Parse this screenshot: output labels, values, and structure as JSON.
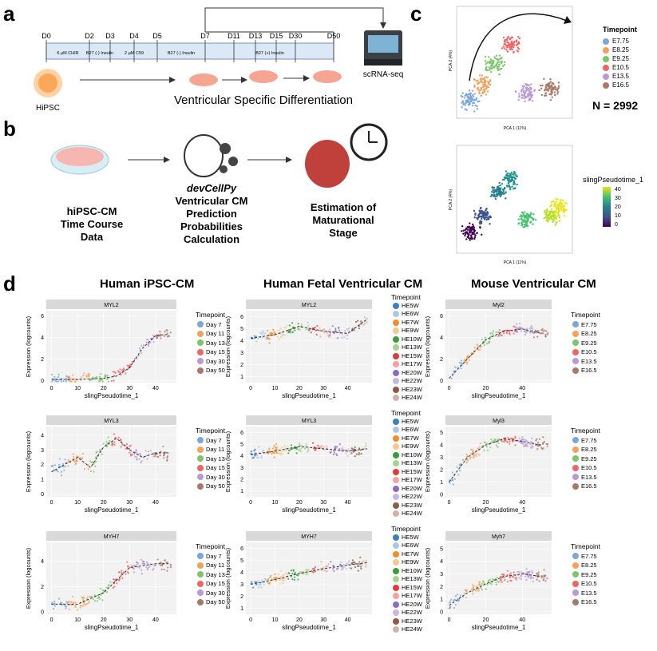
{
  "panel_a": {
    "label": "a",
    "days": [
      "D0",
      "D2",
      "D3",
      "D4",
      "D5",
      "D7",
      "D11",
      "D13",
      "D15",
      "D30",
      "D50"
    ],
    "media": [
      "6 µM CHIR",
      "B27 (-) Insulin",
      "2 µM C59",
      "B27 (-) Insulin",
      "B27 (+) Insulin"
    ],
    "hipsc": "HiPSC",
    "differentiation": "Ventricular Specific Differentiation",
    "scrna": "scRNA-seq",
    "colors": {
      "timeline_bg": "#dce8f5",
      "cell": "#f6a593",
      "hipsc": "#f9a85a"
    }
  },
  "panel_b": {
    "label": "b",
    "step1": [
      "hiPSC-CM",
      "Time Course Data"
    ],
    "tool": "devCellPy",
    "step2": [
      "Ventricular CM",
      "Prediction",
      "Probabilities",
      "Calculation"
    ],
    "step3": [
      "Estimation of",
      "Maturational",
      "Stage"
    ]
  },
  "panel_c": {
    "label": "c",
    "pca_top": {
      "xlabel": "PCA 1 (11%)",
      "ylabel": "PCA 2 (4%)",
      "legend_title": "Timepoint",
      "legend": [
        "E7.75",
        "E8.25",
        "E9.25",
        "E10.5",
        "E13.5",
        "E16.5"
      ],
      "colors": [
        "#7ba6dc",
        "#f5a15c",
        "#7cc56b",
        "#ef6464",
        "#b99ad6",
        "#a97868"
      ]
    },
    "n_label": "N = 2992",
    "pca_bottom": {
      "xlabel": "PCA 1 (11%)",
      "ylabel": "PCA 2 (4%)",
      "legend_title": "slingPseudotime_1",
      "ticks": [
        "40",
        "30",
        "20",
        "10",
        "0"
      ]
    }
  },
  "panel_d": {
    "label": "d",
    "columns": [
      "Human iPSC-CM",
      "Human Fetal Ventricular CM",
      "Mouse Ventricular CM"
    ],
    "xlabel": "slingPseudotime_1",
    "ylabel": "Expression (logcounts)",
    "legend_title": "Timepoint",
    "legends": [
      {
        "items": [
          "Day 7",
          "Day 11",
          "Day 13",
          "Day 15",
          "Day 30",
          "Day 50"
        ],
        "colors": [
          "#7ba6dc",
          "#f5a15c",
          "#7cc56b",
          "#ef6464",
          "#b99ad6",
          "#a97868"
        ]
      },
      {
        "items": [
          "HE5W",
          "HE6W",
          "HE7W",
          "HE9W",
          "HE10W",
          "HE13W",
          "HE15W",
          "HE17W",
          "HE20W",
          "HE22W",
          "HE23W",
          "HE24W"
        ],
        "colors": [
          "#3d7fc0",
          "#a9c8e8",
          "#f18d2e",
          "#f5c98d",
          "#3a9c3a",
          "#a4d58b",
          "#e03b3b",
          "#f4a1a1",
          "#8d6cc0",
          "#c9b7e0",
          "#8a5a4a",
          "#d1b2a8"
        ]
      },
      {
        "items": [
          "E7.75",
          "E8.25",
          "E9.25",
          "E10.5",
          "E13.5",
          "E16.5"
        ],
        "colors": [
          "#7ba6dc",
          "#f5a15c",
          "#7cc56b",
          "#ef6464",
          "#b99ad6",
          "#a97868"
        ]
      }
    ]
  },
  "chart_data": [
    {
      "type": "line",
      "panel": "MYL2 Human iPSC-CM",
      "title": "MYL2",
      "xlabel": "slingPseudotime_1",
      "ylabel": "Expression (logcounts)",
      "x": [
        0,
        10,
        20,
        25,
        30,
        35,
        40,
        45
      ],
      "values": [
        0.1,
        0.1,
        0.2,
        0.4,
        1.2,
        3.0,
        4.2,
        4.3
      ],
      "xticks": [
        0,
        10,
        20,
        30,
        40
      ],
      "yticks": [
        0,
        2,
        4,
        6
      ],
      "xlim": [
        -2,
        48
      ],
      "ylim": [
        -0.2,
        6.5
      ]
    },
    {
      "type": "line",
      "panel": "MYL2 Human Fetal Ventricular CM",
      "title": "MYL2",
      "xlabel": "slingPseudotime_1",
      "ylabel": "Expression (logcounts)",
      "x": [
        0,
        10,
        20,
        30,
        40,
        48
      ],
      "values": [
        4.2,
        4.5,
        5.2,
        4.8,
        4.6,
        5.8
      ],
      "xticks": [
        0,
        10,
        20,
        30,
        40
      ],
      "yticks": [
        1,
        2,
        3,
        4,
        5,
        6
      ],
      "xlim": [
        -2,
        50
      ],
      "ylim": [
        0.5,
        6.5
      ]
    },
    {
      "type": "line",
      "panel": "Myl2 Mouse Ventricular CM",
      "title": "Myl2",
      "xlabel": "slingPseudotime_1",
      "ylabel": "Expression (logcounts)",
      "x": [
        0,
        10,
        20,
        30,
        40,
        50
      ],
      "values": [
        0.2,
        2.0,
        3.8,
        4.6,
        4.8,
        4.4
      ],
      "xticks": [
        0,
        20,
        40
      ],
      "yticks": [
        0,
        2,
        4,
        6
      ],
      "xlim": [
        -2,
        56
      ],
      "ylim": [
        -0.2,
        6.5
      ]
    },
    {
      "type": "line",
      "panel": "MYL3 Human iPSC-CM",
      "title": "MYL3",
      "xlabel": "slingPseudotime_1",
      "ylabel": "Expression (logcounts)",
      "x": [
        0,
        5,
        10,
        15,
        20,
        25,
        30,
        35,
        40,
        45
      ],
      "values": [
        1.5,
        2.0,
        2.5,
        1.8,
        3.2,
        3.8,
        3.0,
        2.5,
        2.8,
        2.8
      ],
      "xticks": [
        0,
        10,
        20,
        30,
        40
      ],
      "yticks": [
        0,
        1,
        2,
        3,
        4
      ],
      "xlim": [
        -2,
        48
      ],
      "ylim": [
        -0.2,
        4.6
      ]
    },
    {
      "type": "line",
      "panel": "MYL3 Human Fetal Ventricular CM",
      "title": "MYL3",
      "xlabel": "slingPseudotime_1",
      "ylabel": "Expression (logcounts)",
      "x": [
        0,
        10,
        20,
        30,
        40,
        48
      ],
      "values": [
        4.1,
        4.4,
        4.8,
        4.6,
        4.4,
        4.6
      ],
      "xticks": [
        0,
        10,
        20,
        30,
        40
      ],
      "yticks": [
        1,
        2,
        3,
        4,
        5,
        6
      ],
      "xlim": [
        -2,
        50
      ],
      "ylim": [
        0.5,
        6.5
      ]
    },
    {
      "type": "line",
      "panel": "Myl3 Mouse Ventricular CM",
      "title": "Myl3",
      "xlabel": "slingPseudotime_1",
      "ylabel": "Expression (logcounts)",
      "x": [
        0,
        10,
        20,
        30,
        40,
        50
      ],
      "values": [
        1.0,
        3.0,
        4.0,
        4.5,
        4.3,
        4.0
      ],
      "xticks": [
        0,
        20,
        40
      ],
      "yticks": [
        0,
        1,
        2,
        3,
        4,
        5
      ],
      "xlim": [
        -2,
        56
      ],
      "ylim": [
        -0.2,
        5.5
      ]
    },
    {
      "type": "line",
      "panel": "MYH7 Human iPSC-CM",
      "title": "MYH7",
      "xlabel": "slingPseudotime_1",
      "ylabel": "Expression (logcounts)",
      "x": [
        0,
        10,
        20,
        30,
        40,
        45
      ],
      "values": [
        0.6,
        0.6,
        1.5,
        3.5,
        3.8,
        3.8
      ],
      "xticks": [
        0,
        10,
        20,
        30,
        40
      ],
      "yticks": [
        0,
        2,
        4
      ],
      "xlim": [
        -2,
        48
      ],
      "ylim": [
        -0.2,
        5.5
      ]
    },
    {
      "type": "line",
      "panel": "MYH7 Human Fetal Ventricular CM",
      "title": "MYH7",
      "xlabel": "slingPseudotime_1",
      "ylabel": "Expression (logcounts)",
      "x": [
        0,
        10,
        20,
        30,
        40,
        48
      ],
      "values": [
        3.0,
        3.4,
        3.9,
        4.3,
        4.6,
        4.8
      ],
      "xticks": [
        0,
        10,
        20,
        30,
        40
      ],
      "yticks": [
        1,
        2,
        3,
        4,
        5,
        6
      ],
      "xlim": [
        -2,
        50
      ],
      "ylim": [
        0.5,
        6.5
      ]
    },
    {
      "type": "line",
      "panel": "Myh7 Mouse Ventricular CM",
      "title": "Myh7",
      "xlabel": "slingPseudotime_1",
      "ylabel": "Expression (logcounts)",
      "x": [
        0,
        10,
        20,
        30,
        40,
        50
      ],
      "values": [
        0.5,
        1.5,
        2.2,
        2.8,
        3.0,
        2.8
      ],
      "xticks": [
        0,
        20,
        40
      ],
      "yticks": [
        0,
        1,
        2,
        3,
        4,
        5
      ],
      "xlim": [
        -2,
        56
      ],
      "ylim": [
        -0.2,
        5.5
      ]
    }
  ]
}
